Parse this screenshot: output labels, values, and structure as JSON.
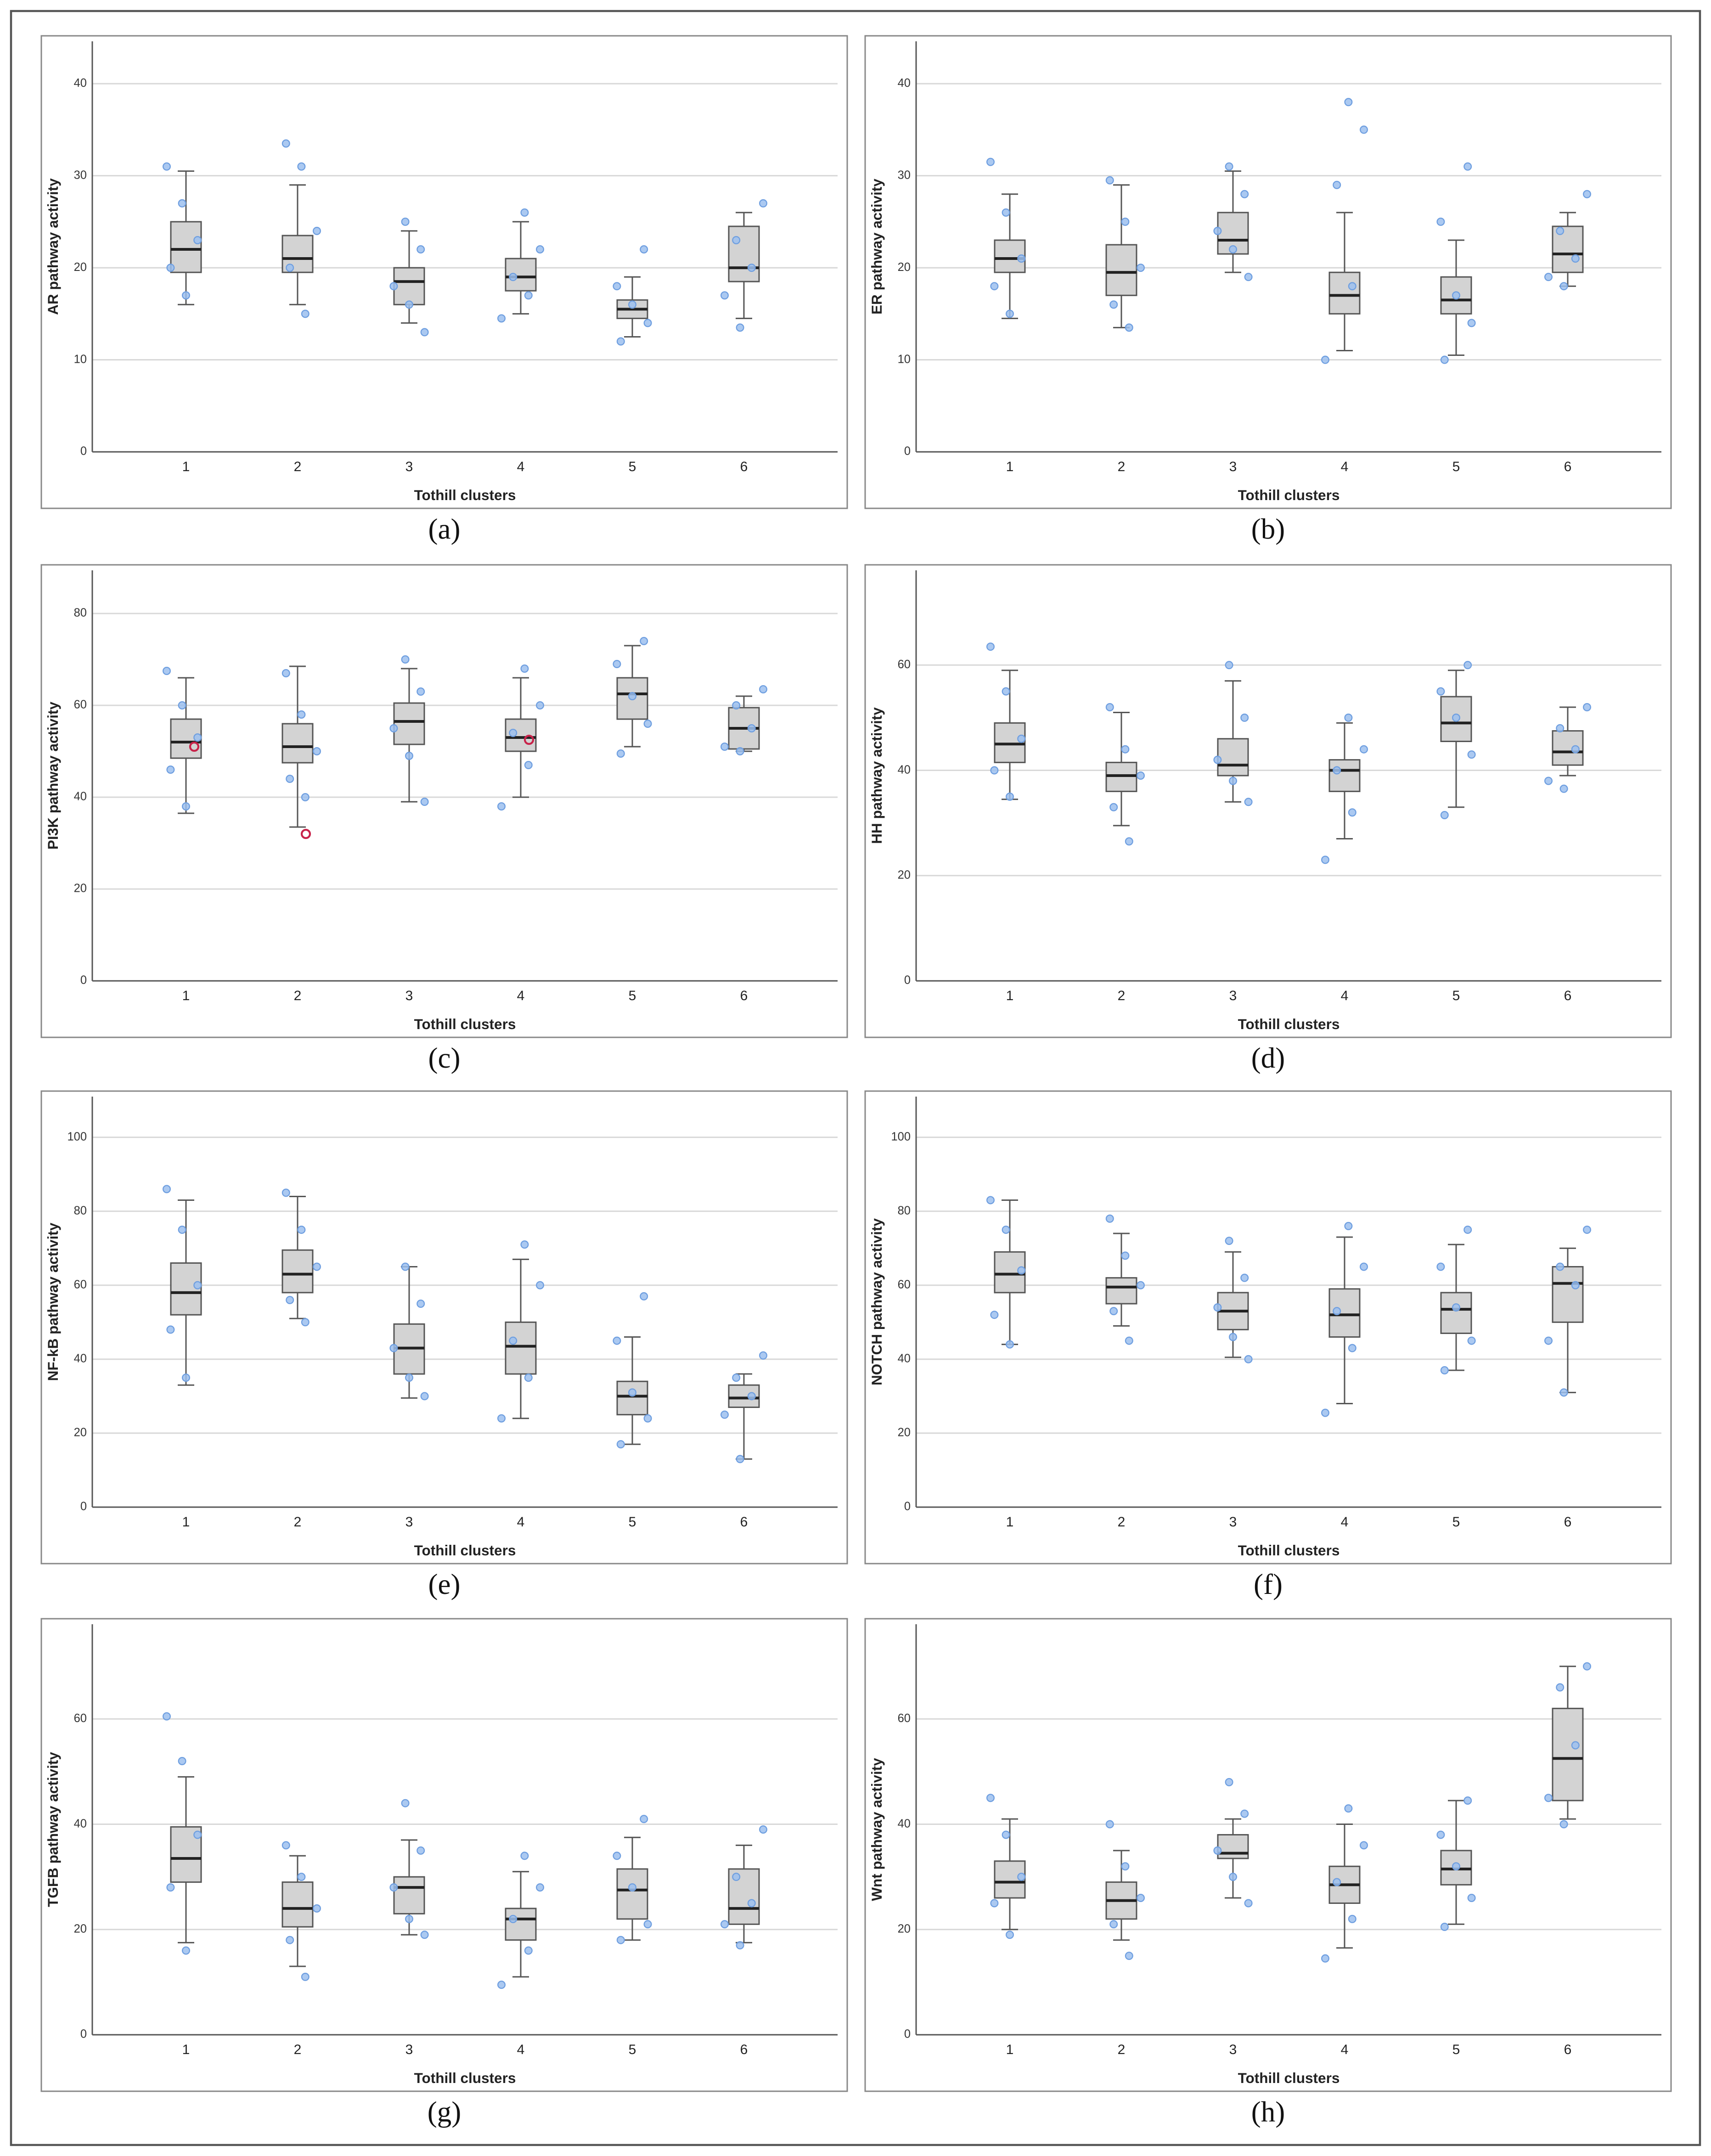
{
  "chart_data": [
    {
      "type": "box",
      "panel_label": "(a)",
      "ylabel": "AR pathway activity",
      "xlabel": "Tothill clusters",
      "categories": [
        "1",
        "2",
        "3",
        "4",
        "5",
        "6"
      ],
      "ylim": [
        0,
        44.6
      ],
      "yticks": [
        0,
        10,
        20,
        30,
        40
      ],
      "grid": true,
      "box_color": "#d3d3d3",
      "point_color": "#9cc0ee",
      "boxes": [
        {
          "whislo": 16,
          "q1": 19.5,
          "med": 22,
          "q3": 25,
          "whishi": 30.5
        },
        {
          "whislo": 16,
          "q1": 19.5,
          "med": 21,
          "q3": 23.5,
          "whishi": 29
        },
        {
          "whislo": 14,
          "q1": 16,
          "med": 18.5,
          "q3": 20,
          "whishi": 24
        },
        {
          "whislo": 15,
          "q1": 17.5,
          "med": 19,
          "q3": 21,
          "whishi": 25
        },
        {
          "whislo": 12.5,
          "q1": 14.5,
          "med": 15.5,
          "q3": 16.5,
          "whishi": 19
        },
        {
          "whislo": 14.5,
          "q1": 18.5,
          "med": 20,
          "q3": 24.5,
          "whishi": 26
        }
      ],
      "points": [
        [
          31,
          27,
          23,
          20,
          17
        ],
        [
          33.5,
          31,
          24,
          20,
          15
        ],
        [
          25,
          22,
          18,
          16,
          13
        ],
        [
          26,
          22,
          19,
          17,
          14.5
        ],
        [
          22,
          18,
          16,
          14,
          12
        ],
        [
          27,
          23,
          20,
          17,
          13.5
        ]
      ]
    },
    {
      "type": "box",
      "panel_label": "(b)",
      "ylabel": "ER pathway activity",
      "xlabel": "Tothill clusters",
      "categories": [
        "1",
        "2",
        "3",
        "4",
        "5",
        "6"
      ],
      "ylim": [
        0,
        44.6
      ],
      "yticks": [
        0,
        10,
        20,
        30,
        40
      ],
      "grid": true,
      "box_color": "#d3d3d3",
      "point_color": "#9cc0ee",
      "boxes": [
        {
          "whislo": 14.5,
          "q1": 19.5,
          "med": 21,
          "q3": 23,
          "whishi": 28
        },
        {
          "whislo": 13.5,
          "q1": 17,
          "med": 19.5,
          "q3": 22.5,
          "whishi": 29
        },
        {
          "whislo": 19.5,
          "q1": 21.5,
          "med": 23,
          "q3": 26,
          "whishi": 30.5
        },
        {
          "whislo": 11,
          "q1": 15,
          "med": 17,
          "q3": 19.5,
          "whishi": 26
        },
        {
          "whislo": 10.5,
          "q1": 15,
          "med": 16.5,
          "q3": 19,
          "whishi": 23
        },
        {
          "whislo": 18,
          "q1": 19.5,
          "med": 21.5,
          "q3": 24.5,
          "whishi": 26
        }
      ],
      "points": [
        [
          31.5,
          26,
          21,
          18,
          15
        ],
        [
          29.5,
          25,
          20,
          16,
          13.5
        ],
        [
          31,
          28,
          24,
          22,
          19
        ],
        [
          38,
          35,
          29,
          18,
          10
        ],
        [
          31,
          25,
          17,
          14,
          10
        ],
        [
          28,
          24,
          21,
          19,
          18
        ]
      ]
    },
    {
      "type": "box",
      "panel_label": "(c)",
      "ylabel": "PI3K pathway activity",
      "xlabel": "Tothill clusters",
      "categories": [
        "1",
        "2",
        "3",
        "4",
        "5",
        "6"
      ],
      "ylim": [
        0,
        89.4
      ],
      "yticks": [
        0,
        20,
        40,
        60,
        80
      ],
      "grid": true,
      "box_color": "#d3d3d3",
      "point_color": "#9cc0ee",
      "highlight_color": "#c8234a",
      "boxes": [
        {
          "whislo": 36.5,
          "q1": 48.5,
          "med": 52,
          "q3": 57,
          "whishi": 66
        },
        {
          "whislo": 33.5,
          "q1": 47.5,
          "med": 51,
          "q3": 56,
          "whishi": 68.5
        },
        {
          "whislo": 39,
          "q1": 51.5,
          "med": 56.5,
          "q3": 60.5,
          "whishi": 68
        },
        {
          "whislo": 40,
          "q1": 50,
          "med": 53,
          "q3": 57,
          "whishi": 66
        },
        {
          "whislo": 51,
          "q1": 57,
          "med": 62.5,
          "q3": 66,
          "whishi": 73
        },
        {
          "whislo": 50,
          "q1": 50.5,
          "med": 55,
          "q3": 59.5,
          "whishi": 62
        }
      ],
      "points": [
        [
          67.5,
          60,
          53,
          46,
          38
        ],
        [
          67,
          58,
          50,
          44,
          40
        ],
        [
          70,
          63,
          55,
          49,
          39
        ],
        [
          68,
          60,
          54,
          47,
          38
        ],
        [
          74,
          69,
          62,
          56,
          49.5
        ],
        [
          63.5,
          60,
          55,
          51,
          50
        ]
      ],
      "highlights": [
        [
          51
        ],
        [
          32
        ],
        [],
        [
          52.5
        ],
        [],
        []
      ]
    },
    {
      "type": "box",
      "panel_label": "(d)",
      "ylabel": "HH pathway activity",
      "xlabel": "Tothill clusters",
      "categories": [
        "1",
        "2",
        "3",
        "4",
        "5",
        "6"
      ],
      "ylim": [
        0,
        78
      ],
      "yticks": [
        0,
        20,
        40,
        60
      ],
      "grid": true,
      "box_color": "#d3d3d3",
      "point_color": "#9cc0ee",
      "boxes": [
        {
          "whislo": 34.5,
          "q1": 41.5,
          "med": 45,
          "q3": 49,
          "whishi": 59
        },
        {
          "whislo": 29.5,
          "q1": 36,
          "med": 39,
          "q3": 41.5,
          "whishi": 51
        },
        {
          "whislo": 34,
          "q1": 39,
          "med": 41,
          "q3": 46,
          "whishi": 57
        },
        {
          "whislo": 27,
          "q1": 36,
          "med": 40,
          "q3": 42,
          "whishi": 49
        },
        {
          "whislo": 33,
          "q1": 45.5,
          "med": 49,
          "q3": 54,
          "whishi": 59
        },
        {
          "whislo": 39,
          "q1": 41,
          "med": 43.5,
          "q3": 47.5,
          "whishi": 52
        }
      ],
      "points": [
        [
          63.5,
          55,
          46,
          40,
          35
        ],
        [
          52,
          44,
          39,
          33,
          26.5
        ],
        [
          60,
          50,
          42,
          38,
          34
        ],
        [
          50,
          44,
          40,
          32,
          23
        ],
        [
          60,
          55,
          50,
          43,
          31.5
        ],
        [
          52,
          48,
          44,
          38,
          36.5
        ]
      ]
    },
    {
      "type": "box",
      "panel_label": "(e)",
      "ylabel": "NF-kB pathway activity",
      "xlabel": "Tothill clusters",
      "categories": [
        "1",
        "2",
        "3",
        "4",
        "5",
        "6"
      ],
      "ylim": [
        0,
        111
      ],
      "yticks": [
        0,
        20,
        40,
        60,
        80,
        100
      ],
      "grid": true,
      "box_color": "#d3d3d3",
      "point_color": "#9cc0ee",
      "boxes": [
        {
          "whislo": 33,
          "q1": 52,
          "med": 58,
          "q3": 66,
          "whishi": 83
        },
        {
          "whislo": 51,
          "q1": 58,
          "med": 63,
          "q3": 69.5,
          "whishi": 84
        },
        {
          "whislo": 29.5,
          "q1": 36,
          "med": 43,
          "q3": 49.5,
          "whishi": 65
        },
        {
          "whislo": 24,
          "q1": 36,
          "med": 43.5,
          "q3": 50,
          "whishi": 67
        },
        {
          "whislo": 17,
          "q1": 25,
          "med": 30,
          "q3": 34,
          "whishi": 46
        },
        {
          "whislo": 13,
          "q1": 27,
          "med": 29.5,
          "q3": 33,
          "whishi": 36
        }
      ],
      "points": [
        [
          86,
          75,
          60,
          48,
          35
        ],
        [
          85,
          75,
          65,
          56,
          50
        ],
        [
          65,
          55,
          43,
          35,
          30
        ],
        [
          71,
          60,
          45,
          35,
          24
        ],
        [
          57,
          45,
          31,
          24,
          17
        ],
        [
          41,
          35,
          30,
          25,
          13
        ]
      ]
    },
    {
      "type": "box",
      "panel_label": "(f)",
      "ylabel": "NOTCH pathway activity",
      "xlabel": "Tothill clusters",
      "categories": [
        "1",
        "2",
        "3",
        "4",
        "5",
        "6"
      ],
      "ylim": [
        0,
        111
      ],
      "yticks": [
        0,
        20,
        40,
        60,
        80,
        100
      ],
      "grid": true,
      "box_color": "#d3d3d3",
      "point_color": "#9cc0ee",
      "boxes": [
        {
          "whislo": 44,
          "q1": 58,
          "med": 63,
          "q3": 69,
          "whishi": 83
        },
        {
          "whislo": 49,
          "q1": 55,
          "med": 59.5,
          "q3": 62,
          "whishi": 74
        },
        {
          "whislo": 40.5,
          "q1": 48,
          "med": 53,
          "q3": 58,
          "whishi": 69
        },
        {
          "whislo": 28,
          "q1": 46,
          "med": 52,
          "q3": 59,
          "whishi": 73
        },
        {
          "whislo": 37,
          "q1": 47,
          "med": 53.5,
          "q3": 58,
          "whishi": 71
        },
        {
          "whislo": 31,
          "q1": 50,
          "med": 60.5,
          "q3": 65,
          "whishi": 70
        }
      ],
      "points": [
        [
          83,
          75,
          64,
          52,
          44
        ],
        [
          78,
          68,
          60,
          53,
          45
        ],
        [
          72,
          62,
          54,
          46,
          40
        ],
        [
          76,
          65,
          53,
          43,
          25.5
        ],
        [
          75,
          65,
          54,
          45,
          37
        ],
        [
          75,
          65,
          60,
          45,
          31
        ]
      ]
    },
    {
      "type": "box",
      "panel_label": "(g)",
      "ylabel": "TGFB pathway activity",
      "xlabel": "Tothill clusters",
      "categories": [
        "1",
        "2",
        "3",
        "4",
        "5",
        "6"
      ],
      "ylim": [
        0,
        78
      ],
      "yticks": [
        0,
        20,
        40,
        60
      ],
      "grid": true,
      "box_color": "#d3d3d3",
      "point_color": "#9cc0ee",
      "boxes": [
        {
          "whislo": 17.5,
          "q1": 29,
          "med": 33.5,
          "q3": 39.5,
          "whishi": 49
        },
        {
          "whislo": 13,
          "q1": 20.5,
          "med": 24,
          "q3": 29,
          "whishi": 34
        },
        {
          "whislo": 19,
          "q1": 23,
          "med": 28,
          "q3": 30,
          "whishi": 37
        },
        {
          "whislo": 11,
          "q1": 18,
          "med": 22,
          "q3": 24,
          "whishi": 31
        },
        {
          "whislo": 18,
          "q1": 22,
          "med": 27.5,
          "q3": 31.5,
          "whishi": 37.5
        },
        {
          "whislo": 17.5,
          "q1": 21,
          "med": 24,
          "q3": 31.5,
          "whishi": 36
        }
      ],
      "points": [
        [
          60.5,
          52,
          38,
          28,
          16
        ],
        [
          36,
          30,
          24,
          18,
          11
        ],
        [
          44,
          35,
          28,
          22,
          19
        ],
        [
          34,
          28,
          22,
          16,
          9.5
        ],
        [
          41,
          34,
          28,
          21,
          18
        ],
        [
          39,
          30,
          25,
          21,
          17
        ]
      ]
    },
    {
      "type": "box",
      "panel_label": "(h)",
      "ylabel": "Wnt pathway activity",
      "xlabel": "Tothill clusters",
      "categories": [
        "1",
        "2",
        "3",
        "4",
        "5",
        "6"
      ],
      "ylim": [
        0,
        78
      ],
      "yticks": [
        0,
        20,
        40,
        60
      ],
      "grid": true,
      "box_color": "#d3d3d3",
      "point_color": "#9cc0ee",
      "boxes": [
        {
          "whislo": 20,
          "q1": 26,
          "med": 29,
          "q3": 33,
          "whishi": 41
        },
        {
          "whislo": 18,
          "q1": 22,
          "med": 25.5,
          "q3": 29,
          "whishi": 35
        },
        {
          "whislo": 26,
          "q1": 33.5,
          "med": 34.5,
          "q3": 38,
          "whishi": 41
        },
        {
          "whislo": 16.5,
          "q1": 25,
          "med": 28.5,
          "q3": 32,
          "whishi": 40
        },
        {
          "whislo": 21,
          "q1": 28.5,
          "med": 31.5,
          "q3": 35,
          "whishi": 44.5
        },
        {
          "whislo": 41,
          "q1": 44.5,
          "med": 52.5,
          "q3": 62,
          "whishi": 70
        }
      ],
      "points": [
        [
          45,
          38,
          30,
          25,
          19
        ],
        [
          40,
          32,
          26,
          21,
          15
        ],
        [
          48,
          42,
          35,
          30,
          25
        ],
        [
          43,
          36,
          29,
          22,
          14.5
        ],
        [
          44.5,
          38,
          32,
          26,
          20.5
        ],
        [
          70,
          66,
          55,
          45,
          40
        ]
      ]
    }
  ]
}
